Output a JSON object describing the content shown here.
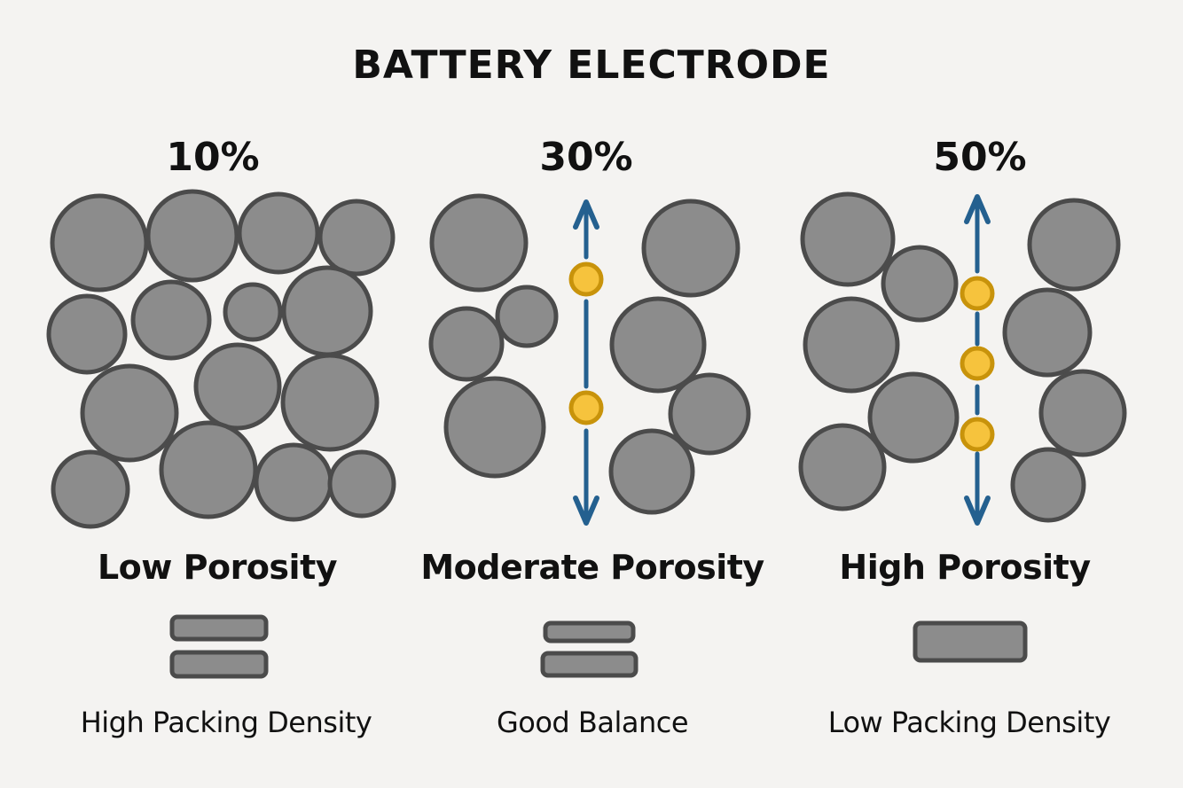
{
  "title": "BATTERY ELECTRODE",
  "panels": [
    {
      "porosity": "10%",
      "label": "Low Porosity",
      "density_label": "High Packing Density"
    },
    {
      "porosity": "30%",
      "label": "Moderate Porosity",
      "density_label": "Good Balance"
    },
    {
      "porosity": "50%",
      "label": "High Porosity",
      "density_label": "Low Packing Density"
    }
  ],
  "colors": {
    "background": "#f4f3f1",
    "particle_fill": "#8c8c8c",
    "particle_stroke": "#4b4b4b",
    "arrow": "#24608f",
    "ion_fill": "#f6c33d",
    "ion_stroke": "#c8930b",
    "text": "#111111"
  },
  "icons": {
    "particle": "particle-circle",
    "ion": "ion-dot",
    "transport": "double-headed-arrow",
    "layer": "electrode-layer-bar"
  }
}
